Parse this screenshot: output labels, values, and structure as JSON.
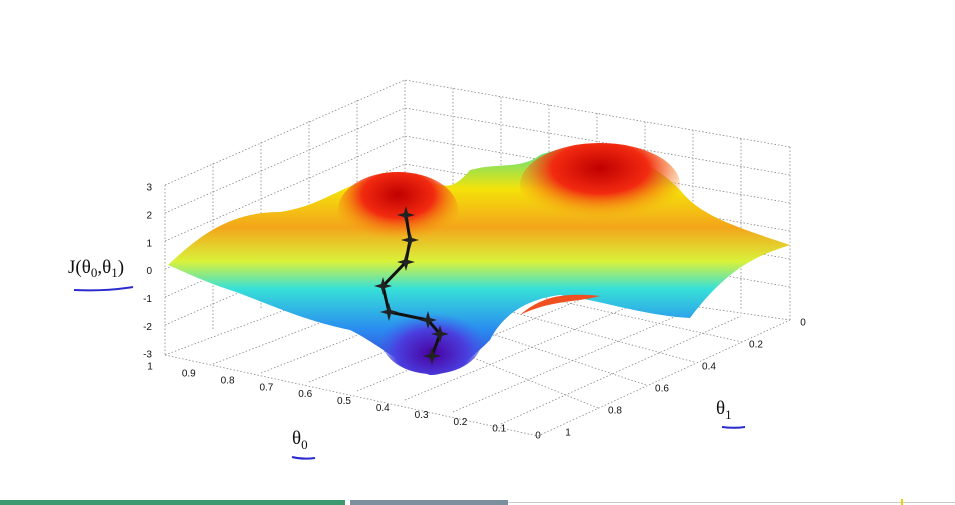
{
  "plot": {
    "z_axis": {
      "label": [
        "J(θ",
        "0",
        ",θ",
        "1",
        ")"
      ],
      "ticks": [
        "3",
        "2",
        "1",
        "0",
        "-1",
        "-2",
        "-3"
      ]
    },
    "theta0_axis": {
      "label": [
        "θ",
        "0"
      ],
      "ticks": [
        "1",
        "0.9",
        "0.8",
        "0.7",
        "0.6",
        "0.5",
        "0.4",
        "0.3",
        "0.2",
        "0.1",
        "0"
      ]
    },
    "theta1_axis": {
      "label": [
        "θ",
        "1"
      ],
      "ticks": [
        "0",
        "0.2",
        "0.4",
        "0.6",
        "0.8",
        "1"
      ]
    }
  }
}
